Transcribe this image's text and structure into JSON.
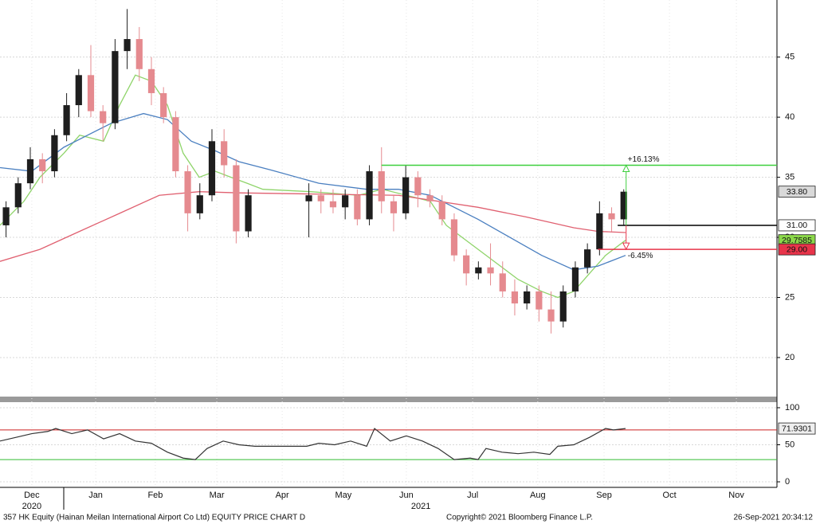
{
  "chart_data": [
    {
      "type": "candlestick",
      "x": [
        2,
        6,
        10,
        14,
        18,
        22,
        26,
        30,
        34,
        38,
        42,
        46,
        50,
        54,
        58,
        62,
        66,
        70,
        74,
        78,
        82,
        102,
        106,
        110,
        114,
        118,
        122,
        126,
        130,
        134,
        138,
        142,
        146,
        150,
        154,
        158,
        162,
        166,
        170,
        174,
        178,
        182,
        186,
        190,
        194,
        198,
        202,
        206
      ],
      "open": [
        31,
        32.5,
        34.5,
        36.5,
        35.5,
        38.5,
        41,
        43.5,
        40.5,
        39.5,
        45.5,
        46.5,
        44,
        42,
        40,
        35.5,
        32,
        33.5,
        38,
        36,
        30.5,
        33,
        33.5,
        33,
        32.5,
        33.5,
        31.5,
        35.5,
        33,
        32,
        35,
        33.5,
        33,
        31.5,
        28.5,
        27,
        27.5,
        27,
        25.5,
        24.5,
        25.5,
        24,
        23,
        25.5,
        27.5,
        29,
        32,
        31.5
      ],
      "high": [
        33,
        35,
        37.5,
        37,
        39,
        42,
        44,
        46,
        41,
        46.5,
        49,
        47.5,
        45,
        42.5,
        40.5,
        36,
        34.5,
        39,
        39,
        36.5,
        34,
        34.5,
        34,
        34,
        34,
        34,
        36,
        37.5,
        33.5,
        36,
        35.5,
        34,
        33.5,
        32,
        29,
        28,
        29.5,
        28,
        26.5,
        26,
        26,
        25.5,
        26,
        28,
        29.5,
        33,
        32.5,
        34
      ],
      "low": [
        30,
        32,
        34,
        34.5,
        35,
        38,
        40,
        40,
        38,
        39,
        44,
        43,
        41,
        39.5,
        35,
        30.5,
        31.5,
        33,
        35,
        29.5,
        30,
        30,
        32,
        32,
        31.5,
        31,
        31,
        32,
        30.5,
        31.5,
        32.5,
        32.5,
        31,
        28,
        26,
        26.5,
        26,
        25,
        23.5,
        24,
        23,
        22,
        22.5,
        25,
        27,
        28.5,
        30.5,
        31
      ],
      "close": [
        32.5,
        34.5,
        36.5,
        35.5,
        38.5,
        41,
        43.5,
        40.5,
        39.5,
        45.5,
        46.5,
        44,
        42,
        40,
        35.5,
        32,
        33.5,
        38,
        36,
        30.5,
        33.5,
        33.5,
        33,
        32.5,
        33.5,
        31.5,
        35.5,
        33,
        32,
        35,
        33.5,
        33,
        31.5,
        28.5,
        27,
        27.5,
        27,
        25.5,
        24.5,
        25.5,
        24,
        23,
        25.5,
        27.5,
        29,
        32,
        31.5,
        33.8
      ],
      "up_color": "#1e1e1e",
      "down_color": "#e58a8f",
      "overlays": [
        {
          "color": "#8fd46a",
          "x": [
            0,
            7.9,
            13.2,
            21.1,
            26.3,
            34.2,
            39.5,
            44.7,
            50,
            55.3,
            60.5,
            65.8,
            71.1,
            76.3,
            81.6,
            86.8,
            102.6,
            118.4,
            126.3,
            134.2,
            142.1,
            147.4,
            152.6,
            157.9,
            163.2,
            171.1,
            178.9,
            184.2,
            189.5,
            194.7,
            200,
            206.6
          ],
          "values": [
            31,
            33,
            35,
            37,
            38.5,
            38,
            41,
            43.5,
            43,
            41,
            37,
            35,
            35.5,
            35,
            34.5,
            34,
            33.8,
            33.5,
            34,
            33.5,
            33,
            31,
            30,
            29,
            28,
            26.5,
            25.5,
            25,
            25.5,
            27,
            28.5,
            29.7585
          ]
        },
        {
          "color": "#4a7fc0",
          "x": [
            0,
            10.5,
            21.1,
            28.9,
            36.8,
            47.4,
            55.3,
            63.2,
            71.1,
            78.9,
            89.5,
            105.3,
            121.1,
            131.6,
            142.1,
            150,
            157.9,
            168.4,
            178.9,
            189.5,
            197.4,
            206.6
          ],
          "values": [
            35.8,
            35.5,
            37.5,
            38.5,
            39.5,
            40.3,
            39.8,
            38,
            37.2,
            36.3,
            35.6,
            34.5,
            34,
            34,
            33.5,
            32.5,
            31.5,
            30,
            28.5,
            27.3,
            27.6,
            28.5
          ]
        },
        {
          "color": "#e06070",
          "x": [
            0,
            13.2,
            26.3,
            39.5,
            52.6,
            65.8,
            78.9,
            105.3,
            131.6,
            157.9,
            173.7,
            189.5,
            197.4,
            206.6
          ],
          "values": [
            28,
            29,
            30.5,
            32,
            33.5,
            33.8,
            33.7,
            33.6,
            33.5,
            32.5,
            31.7,
            30.8,
            30.5,
            30.4
          ]
        }
      ],
      "levels": [
        {
          "value": 31,
          "color": "#000000",
          "x_from": 204
        },
        {
          "value": 36,
          "color": "#3ecf3e",
          "x_from": 126,
          "label": "+16.13%"
        },
        {
          "value": 29,
          "color": "#e8344a",
          "x_from": 197.5,
          "label": "-6.45%"
        }
      ],
      "price_tags": [
        {
          "value": 33.8,
          "label": "33.80",
          "color": "#d9d9d9",
          "text_color": "#000000"
        },
        {
          "value": 31,
          "label": "31.00",
          "color": "#ffffff",
          "text_color": "#000000"
        },
        {
          "value": 29.7585,
          "label": "29.7585",
          "color": "#8cd84a",
          "text_color": "#000000"
        },
        {
          "value": 29,
          "label": "29.00",
          "color": "#e8344a",
          "text_color": "#ffffff"
        }
      ],
      "xlim": [
        0,
        256.6
      ],
      "xticks": [
        {
          "value": 10.5,
          "label": "Dec"
        },
        {
          "value": 31.6,
          "label": "Jan"
        },
        {
          "value": 51.3,
          "label": "Feb"
        },
        {
          "value": 71.6,
          "label": "Mar"
        },
        {
          "value": 93.2,
          "label": "Apr"
        },
        {
          "value": 113.4,
          "label": "May"
        },
        {
          "value": 134.2,
          "label": "Jun"
        },
        {
          "value": 156.1,
          "label": "Jul"
        },
        {
          "value": 177.6,
          "label": "Aug"
        },
        {
          "value": 199.5,
          "label": "Sep"
        },
        {
          "value": 221.1,
          "label": "Oct"
        },
        {
          "value": 243.2,
          "label": "Nov"
        }
      ],
      "years": [
        {
          "value": 10.5,
          "label": "2020"
        },
        {
          "value": 139,
          "label": "2021"
        }
      ],
      "ylim": [
        16.75,
        49.75
      ],
      "yticks": [
        20,
        25,
        30,
        35,
        40,
        45
      ],
      "grid": true
    },
    {
      "type": "line",
      "x": [
        0,
        5.3,
        10.5,
        15.8,
        18.4,
        23.7,
        28.9,
        34.2,
        39.5,
        44.7,
        50,
        55.3,
        60.5,
        64.5,
        68.4,
        73.7,
        78.9,
        84.2,
        101.3,
        105.3,
        110.5,
        115.8,
        121.1,
        123.7,
        128.9,
        134.2,
        139.5,
        144.7,
        150,
        155.3,
        157.9,
        160.5,
        165.8,
        171.1,
        176.3,
        181.6,
        184.2,
        189.5,
        194.7,
        200,
        202.6,
        206.6
      ],
      "series": [
        {
          "color": "#333333",
          "values": [
            55,
            60,
            65,
            68,
            72,
            65,
            70,
            58,
            65,
            55,
            52,
            40,
            32,
            30,
            45,
            55,
            50,
            48,
            48,
            52,
            50,
            55,
            48,
            72,
            55,
            62,
            55,
            45,
            30,
            32,
            30,
            45,
            40,
            38,
            40,
            37,
            48,
            50,
            60,
            72,
            70,
            71.9301
          ]
        }
      ],
      "levels": [
        {
          "value": 70,
          "color": "#cc2222"
        },
        {
          "value": 30,
          "color": "#33bb33"
        }
      ],
      "price_tags": [
        {
          "value": 71.9301,
          "label": "71.9301",
          "color": "#eeeeee",
          "text_color": "#000000"
        }
      ],
      "xlim": [
        0,
        256.6
      ],
      "ylim": [
        -7.5,
        107.5
      ],
      "yticks": [
        0,
        50,
        100
      ],
      "grid": true
    }
  ],
  "footer": {
    "left": "357 HK Equity (Hainan Meilan International Airport Co Ltd) EQUITY PRICE CHART  D",
    "center": "Copyright© 2021 Bloomberg Finance L.P.",
    "right": "26-Sep-2021 20:34:12"
  }
}
